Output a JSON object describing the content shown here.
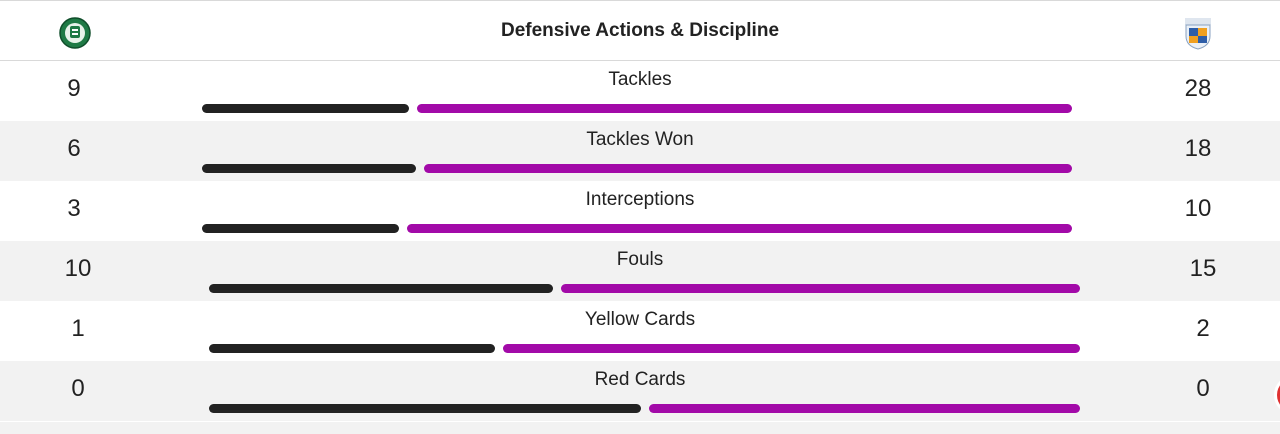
{
  "header": {
    "title": "Defensive Actions & Discipline"
  },
  "colors": {
    "home_bar": "#222222",
    "away_bar": "#a20aa8"
  },
  "stats": [
    {
      "label": "Tackles",
      "home": "9",
      "away": "28",
      "home_share": 0.243
    },
    {
      "label": "Tackles Won",
      "home": "6",
      "away": "18",
      "home_share": 0.25
    },
    {
      "label": "Interceptions",
      "home": "3",
      "away": "10",
      "home_share": 0.231
    },
    {
      "label": "Fouls",
      "home": "10",
      "away": "15",
      "home_share": 0.4
    },
    {
      "label": "Yellow Cards",
      "home": "1",
      "away": "2",
      "home_share": 0.333
    },
    {
      "label": "Red Cards",
      "home": "0",
      "away": "0",
      "home_share": 0.5
    }
  ]
}
